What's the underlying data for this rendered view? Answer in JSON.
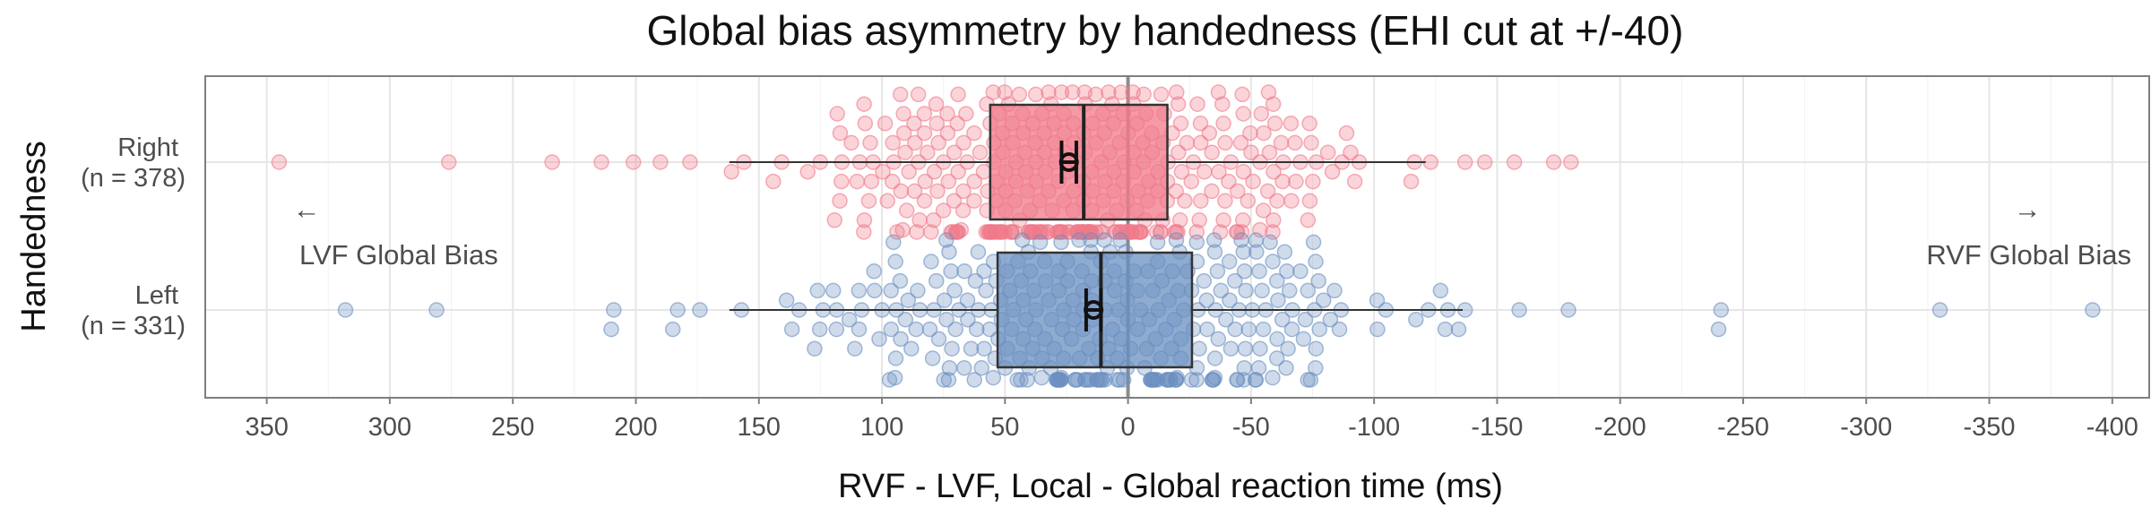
{
  "chart_data": {
    "type": "box-beeswarm",
    "title": "Global bias asymmetry by handedness (EHI cut at +/-40)",
    "xlabel": "RVF - LVF, Local - Global reaction time (ms)",
    "ylabel": "Handedness",
    "x_reversed": true,
    "xlim": [
      375,
      -415
    ],
    "xticks": [
      350,
      300,
      250,
      200,
      150,
      100,
      50,
      0,
      -50,
      -100,
      -150,
      -200,
      -250,
      -300,
      -350,
      -400
    ],
    "xtick_labels": [
      "350",
      "300",
      "250",
      "200",
      "150",
      "100",
      "50",
      "0",
      "-50",
      "-100",
      "-150",
      "-200",
      "-250",
      "-300",
      "-350",
      "-400"
    ],
    "zero_line": 0,
    "groups": [
      {
        "name": "Right",
        "label_line1": "Right",
        "label_line2": "(n = 378)",
        "n": 378,
        "color": "#f07a8a",
        "box": {
          "whisker_low": -121,
          "q1": -16,
          "median": 18,
          "q3": 56,
          "whisker_high": 162
        },
        "mean": 24,
        "ci": [
          21,
          27
        ],
        "outliers": [
          345,
          276,
          234,
          214,
          201,
          190,
          178,
          -123,
          -137,
          -145,
          -157,
          -173,
          -180
        ],
        "seed": 7
      },
      {
        "name": "Left",
        "label_line1": "Left",
        "label_line2": "(n = 331)",
        "n": 331,
        "color": "#6a8fc0",
        "box": {
          "whisker_low": -136,
          "q1": -26,
          "median": 11,
          "q3": 53,
          "whisker_high": 162
        },
        "mean": 14,
        "ci": [
          11,
          17
        ],
        "outliers": [
          318,
          281,
          210,
          209,
          185,
          183,
          174,
          -117,
          -127,
          -130,
          -137,
          -159,
          -179,
          -240,
          -241,
          -330,
          -392
        ],
        "seed": 19
      }
    ],
    "annotations": [
      {
        "text": "LVF Global Bias",
        "arrow": "←"
      },
      {
        "text": "RVF Global Bias",
        "arrow": "→"
      }
    ],
    "grid": true,
    "legend": "none"
  }
}
